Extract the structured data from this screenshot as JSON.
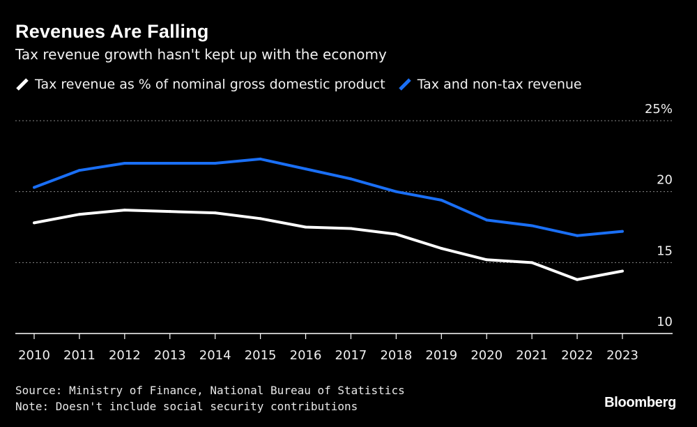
{
  "header": {
    "title": "Revenues Are Falling",
    "subtitle": "Tax revenue growth hasn't kept up with the economy"
  },
  "footer": {
    "source": "Source: Ministry of Finance, National Bureau of Statistics",
    "note": "Note: Doesn't include social security contributions",
    "brand": "Bloomberg"
  },
  "colors": {
    "background": "#000000",
    "series_white": "#ffffff",
    "series_blue": "#1a6ff5",
    "grid": "#8a8a8a"
  },
  "chart_data": {
    "type": "line",
    "title": "Revenues Are Falling",
    "subtitle": "Tax revenue growth hasn't kept up with the economy",
    "xlabel": "",
    "ylabel": "",
    "x": [
      "2010",
      "2011",
      "2012",
      "2013",
      "2014",
      "2015",
      "2016",
      "2017",
      "2018",
      "2019",
      "2020",
      "2021",
      "2022",
      "2023"
    ],
    "series": [
      {
        "name": "Tax revenue as % of nominal gross domestic product",
        "color": "#ffffff",
        "values": [
          17.8,
          18.4,
          18.7,
          18.6,
          18.5,
          18.1,
          17.5,
          17.4,
          17.0,
          16.0,
          15.2,
          15.0,
          13.8,
          14.4
        ]
      },
      {
        "name": "Tax and non-tax revenue",
        "color": "#1a6ff5",
        "values": [
          20.3,
          21.5,
          22.0,
          22.0,
          22.0,
          22.3,
          21.6,
          20.9,
          20.0,
          19.4,
          18.0,
          17.6,
          16.9,
          17.2
        ]
      }
    ],
    "ylim": [
      10,
      25
    ],
    "yticks": [
      {
        "value": 25,
        "label": "25%"
      },
      {
        "value": 20,
        "label": "20"
      },
      {
        "value": 15,
        "label": "15"
      },
      {
        "value": 10,
        "label": "10"
      }
    ],
    "legend_position": "top-left",
    "grid": true
  }
}
